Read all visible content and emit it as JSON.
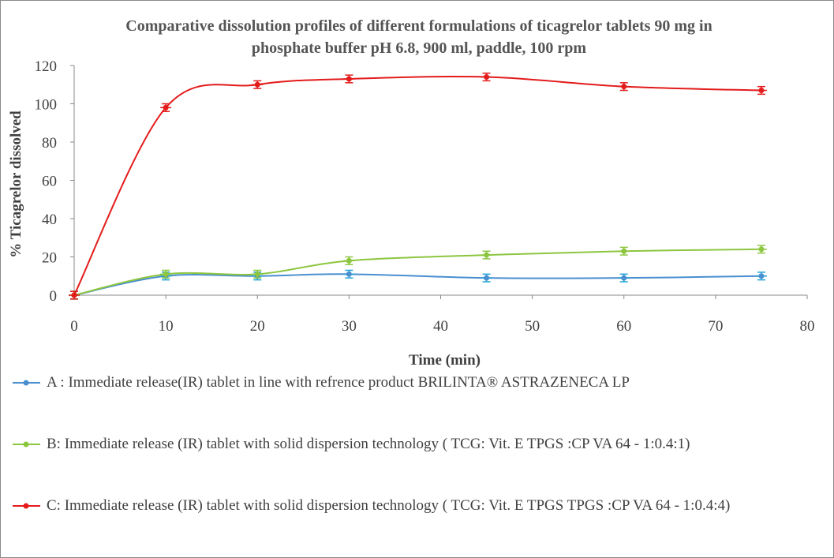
{
  "chart_data": {
    "type": "line",
    "title": "Comparative dissolution profiles of different formulations of ticagrelor tablets 90 mg in phosphate buffer pH 6.8, 900 ml, paddle, 100 rpm",
    "x_label": "Time (min)",
    "y_label": "% Ticagrelor dissolved",
    "x": [
      0,
      10,
      20,
      30,
      45,
      60,
      75
    ],
    "series": [
      {
        "name": "A : Immediate release(IR) tablet in line with refrence product  BRILINTA® ASTRAZENECA LP",
        "color": "#4a8fd0",
        "error_color": "#1fa3d8",
        "values": [
          0,
          10,
          10,
          11,
          9,
          9,
          10
        ],
        "errors": [
          2,
          2,
          2,
          2,
          2,
          2,
          2
        ]
      },
      {
        "name": "B: Immediate release (IR) tablet with solid dispersion technology ( TCG: Vit. E TPGS :CP VA 64 - 1:0.4:1)",
        "color": "#8cc63f",
        "error_color": "#8cc63f",
        "values": [
          0,
          11,
          11,
          18,
          21,
          23,
          24
        ],
        "errors": [
          2,
          2,
          2,
          2,
          2,
          2,
          2
        ]
      },
      {
        "name": "C: Immediate release (IR) tablet with solid dispersion technology  ( TCG: Vit. E TPGS TPGS :CP VA 64 - 1:0.4:4)",
        "color": "#e31b1b",
        "error_color": "#e31b1b",
        "values": [
          0,
          98,
          110,
          113,
          114,
          109,
          107
        ],
        "errors": [
          2,
          2,
          2,
          2,
          2,
          2,
          2
        ]
      }
    ],
    "xlim": [
      0,
      80
    ],
    "xticks": [
      0,
      10,
      20,
      30,
      40,
      50,
      60,
      70,
      80
    ],
    "ylim": [
      0,
      120
    ],
    "yticks": [
      0,
      20,
      40,
      60,
      80,
      100,
      120
    ],
    "grid": false
  }
}
